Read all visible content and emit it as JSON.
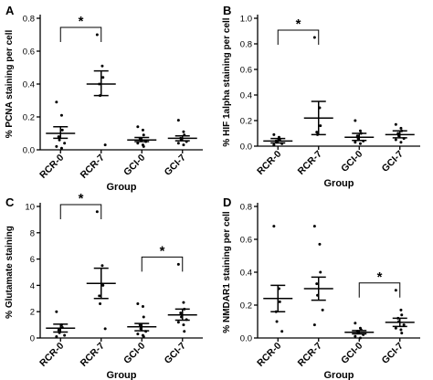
{
  "chart_data": [
    {
      "type": "scatter",
      "panel_label": "A",
      "ylabel": "% PCNA staining per cell",
      "xlabel": "Group",
      "categories": [
        "RCR-0",
        "RCR-7",
        "GCI-0",
        "GCI-7"
      ],
      "ylim": [
        0,
        0.8
      ],
      "yticks": [
        0.0,
        0.2,
        0.4,
        0.6,
        0.8
      ],
      "ytick_labels": [
        "0.0",
        "0.2",
        "0.4",
        "0.6",
        "0.8"
      ],
      "means": [
        0.1,
        0.4,
        0.06,
        0.07
      ],
      "error_upper": [
        0.14,
        0.48,
        0.075,
        0.085
      ],
      "error_lower": [
        0.07,
        0.33,
        0.05,
        0.055
      ],
      "points": [
        [
          0.29,
          0.21,
          0.12,
          0.08,
          0.06,
          0.04,
          0.02,
          0.01
        ],
        [
          0.7,
          0.51,
          0.44,
          0.4,
          0.33,
          0.03
        ],
        [
          0.14,
          0.12,
          0.09,
          0.07,
          0.06,
          0.05,
          0.04,
          0.03,
          0.02
        ],
        [
          0.18,
          0.11,
          0.09,
          0.07,
          0.06,
          0.05,
          0.04,
          0.03
        ]
      ],
      "significance": [
        {
          "from": 0,
          "to": 1,
          "label": "*"
        }
      ]
    },
    {
      "type": "scatter",
      "panel_label": "B",
      "ylabel": "% HIF 1alpha staining per cell",
      "xlabel": "Group",
      "categories": [
        "RCR-0",
        "RCR-7",
        "GCI-0",
        "GCI-7"
      ],
      "ylim": [
        0,
        1.0
      ],
      "yticks": [
        0.0,
        0.2,
        0.4,
        0.6,
        0.8,
        1.0
      ],
      "ytick_labels": [
        "0.0",
        "0.2",
        "0.4",
        "0.6",
        "0.8",
        "1.0"
      ],
      "means": [
        0.04,
        0.22,
        0.07,
        0.09
      ],
      "error_upper": [
        0.06,
        0.35,
        0.1,
        0.12
      ],
      "error_lower": [
        0.025,
        0.09,
        0.045,
        0.065
      ],
      "points": [
        [
          0.09,
          0.07,
          0.05,
          0.04,
          0.03,
          0.02,
          0.01
        ],
        [
          0.85,
          0.3,
          0.16,
          0.11,
          0.09
        ],
        [
          0.2,
          0.12,
          0.1,
          0.08,
          0.06,
          0.04,
          0.03,
          0.02
        ],
        [
          0.17,
          0.14,
          0.12,
          0.1,
          0.08,
          0.06,
          0.05,
          0.03
        ]
      ],
      "significance": [
        {
          "from": 0,
          "to": 1,
          "label": "*"
        }
      ]
    },
    {
      "type": "scatter",
      "panel_label": "C",
      "ylabel": "% Glutamate staining",
      "xlabel": "Group",
      "categories": [
        "RCR-0",
        "RCR-7",
        "GCI-0",
        "GCI-7"
      ],
      "ylim": [
        0,
        10
      ],
      "yticks": [
        0,
        2,
        4,
        6,
        8,
        10
      ],
      "ytick_labels": [
        "0",
        "2",
        "4",
        "6",
        "8",
        "10"
      ],
      "means": [
        0.75,
        4.15,
        0.85,
        1.75
      ],
      "error_upper": [
        1.05,
        5.3,
        1.1,
        2.2
      ],
      "error_lower": [
        0.45,
        3.0,
        0.55,
        1.35
      ],
      "points": [
        [
          2.0,
          1.0,
          0.8,
          0.6,
          0.4,
          0.2,
          0.1
        ],
        [
          9.6,
          5.5,
          4.0,
          3.2,
          2.6,
          0.7
        ],
        [
          2.6,
          2.4,
          1.6,
          1.0,
          0.7,
          0.5,
          0.3,
          0.2,
          0.1
        ],
        [
          5.6,
          2.7,
          2.2,
          1.9,
          1.6,
          1.4,
          1.2,
          1.0,
          0.5
        ]
      ],
      "significance": [
        {
          "from": 0,
          "to": 1,
          "label": "*"
        },
        {
          "from": 2,
          "to": 3,
          "label": "*"
        }
      ]
    },
    {
      "type": "scatter",
      "panel_label": "D",
      "ylabel": "% NMDAR1 staining per cell",
      "xlabel": "Group",
      "categories": [
        "RCR-0",
        "RCR-7",
        "GCI-0",
        "GCI-7"
      ],
      "ylim": [
        0,
        0.8
      ],
      "yticks": [
        0.0,
        0.2,
        0.4,
        0.6,
        0.8
      ],
      "ytick_labels": [
        "0.0",
        "0.2",
        "0.4",
        "0.6",
        "0.8"
      ],
      "means": [
        0.24,
        0.3,
        0.035,
        0.095
      ],
      "error_upper": [
        0.32,
        0.37,
        0.045,
        0.12
      ],
      "error_lower": [
        0.16,
        0.23,
        0.025,
        0.07
      ],
      "points": [
        [
          0.68,
          0.3,
          0.22,
          0.16,
          0.1,
          0.04
        ],
        [
          0.68,
          0.57,
          0.4,
          0.33,
          0.26,
          0.17,
          0.08
        ],
        [
          0.09,
          0.06,
          0.05,
          0.04,
          0.03,
          0.02,
          0.01,
          0.0
        ],
        [
          0.29,
          0.17,
          0.14,
          0.12,
          0.1,
          0.08,
          0.06,
          0.05,
          0.03
        ]
      ],
      "significance": [
        {
          "from": 2,
          "to": 3,
          "label": "*"
        }
      ]
    }
  ]
}
